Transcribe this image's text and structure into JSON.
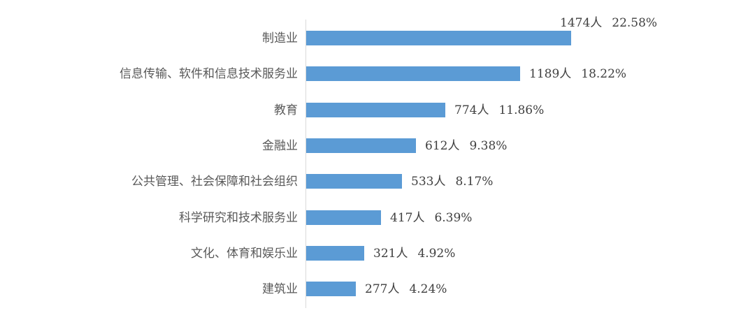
{
  "chart_data": {
    "type": "bar",
    "orientation": "horizontal",
    "title": "",
    "xlabel": "",
    "ylabel": "",
    "unit": "人",
    "categories": [
      "制造业",
      "信息传输、软件和信息技术服务业",
      "教育",
      "金融业",
      "公共管理、社会保障和社会组织",
      "科学研究和技术服务业",
      "文化、体育和娱乐业",
      "建筑业"
    ],
    "values": [
      1474,
      1189,
      774,
      612,
      533,
      417,
      321,
      277
    ],
    "percentages": [
      22.58,
      18.22,
      11.86,
      9.38,
      8.17,
      6.39,
      4.92,
      4.24
    ],
    "data_labels": [
      {
        "count": "1474人",
        "pct": "22.58%"
      },
      {
        "count": "1189人",
        "pct": "18.22%"
      },
      {
        "count": "774人",
        "pct": "11.86%"
      },
      {
        "count": "612人",
        "pct": "9.38%"
      },
      {
        "count": "533人",
        "pct": "8.17%"
      },
      {
        "count": "417人",
        "pct": "6.39%"
      },
      {
        "count": "321人",
        "pct": "4.92%"
      },
      {
        "count": "277人",
        "pct": "4.24%"
      }
    ],
    "bar_color": "#5b9bd5",
    "axis_color": "#d9d9d9",
    "label_color": "#595959",
    "grid": false,
    "legend": null,
    "x_axis_visible": false
  }
}
